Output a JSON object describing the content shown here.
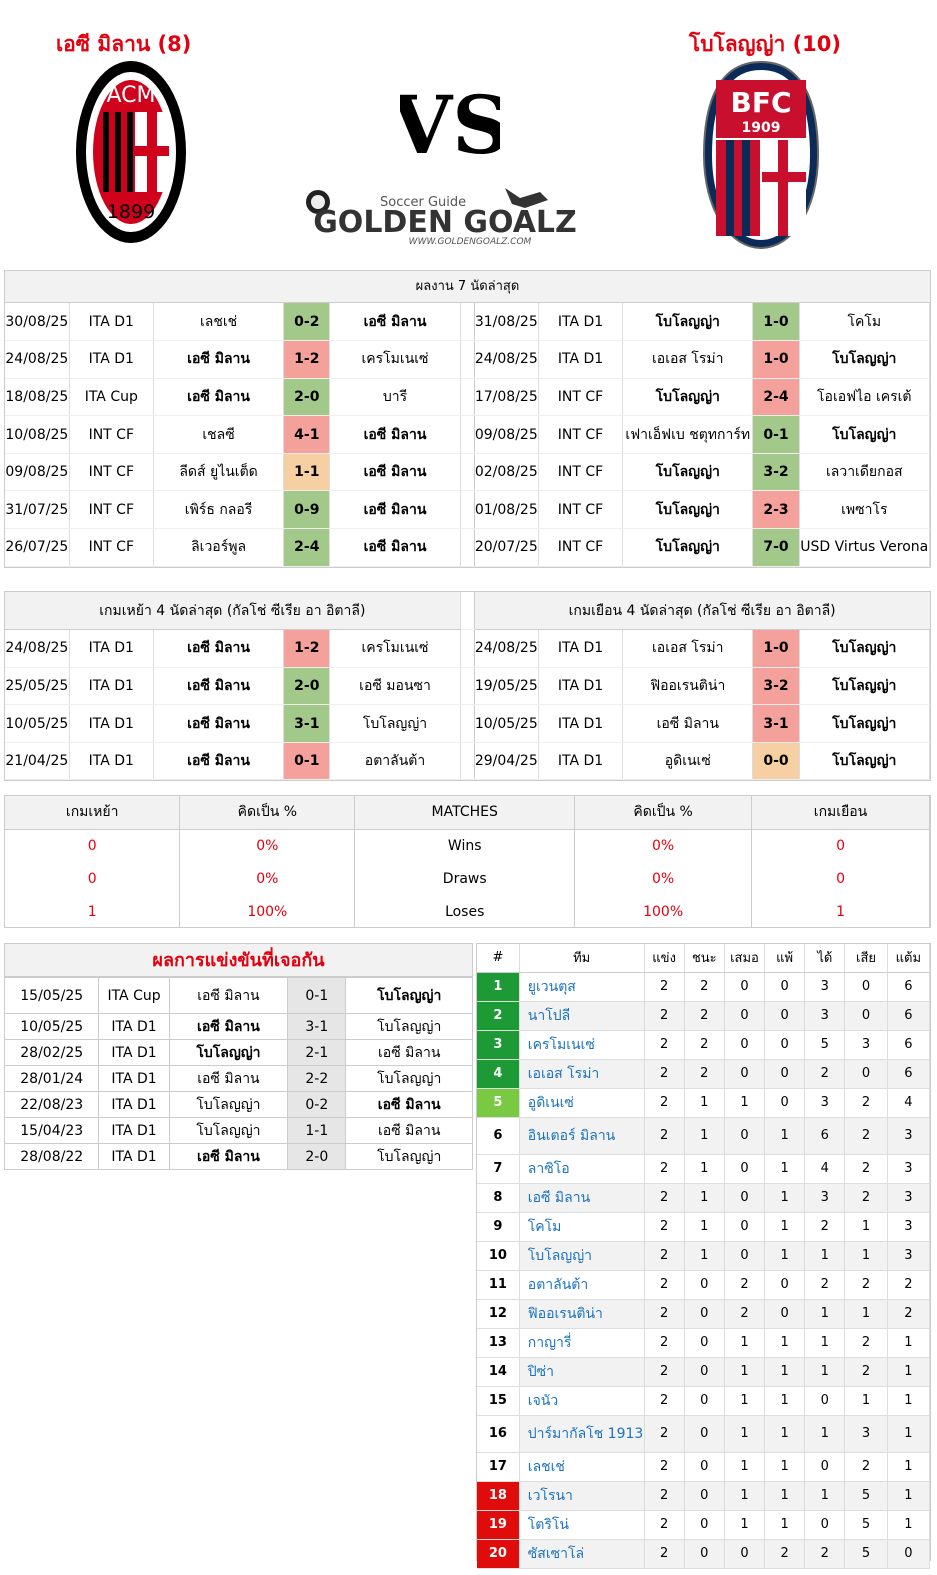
{
  "header": {
    "home_title": "เอซี มิลาน (8)",
    "away_title": "โบโลญญ่า (10)",
    "vs_label": "VS",
    "logo_small": "Soccer Guide",
    "logo_big": "GOLDEN GOALZ",
    "logo_url": "WWW.GOLDENGOALZ.COM",
    "home_crest_text": "ACM",
    "home_crest_year": "1899",
    "away_crest_text": "BFC",
    "away_crest_year": "1909"
  },
  "recent": {
    "title": "ผลงาน 7 นัดล่าสุด",
    "home": [
      {
        "date": "30/08/25",
        "comp": "ITA D1",
        "t1": "เลชเช่",
        "score": "0-2",
        "t2": "เอซี มิลาน",
        "res": "win",
        "b": 2
      },
      {
        "date": "24/08/25",
        "comp": "ITA D1",
        "t1": "เอซี มิลาน",
        "score": "1-2",
        "t2": "เครโมเนเซ่",
        "res": "loss",
        "b": 1
      },
      {
        "date": "18/08/25",
        "comp": "ITA Cup",
        "t1": "เอซี มิลาน",
        "score": "2-0",
        "t2": "บารี",
        "res": "win",
        "b": 1
      },
      {
        "date": "10/08/25",
        "comp": "INT CF",
        "t1": "เชลซี",
        "score": "4-1",
        "t2": "เอซี มิลาน",
        "res": "loss",
        "b": 2
      },
      {
        "date": "09/08/25",
        "comp": "INT CF",
        "t1": "ลีดส์ ยูไนเต็ด",
        "score": "1-1",
        "t2": "เอซี มิลาน",
        "res": "draw",
        "b": 2
      },
      {
        "date": "31/07/25",
        "comp": "INT CF",
        "t1": "เพิร์ธ กลอรี",
        "score": "0-9",
        "t2": "เอซี มิลาน",
        "res": "win",
        "b": 2
      },
      {
        "date": "26/07/25",
        "comp": "INT CF",
        "t1": "ลิเวอร์พูล",
        "score": "2-4",
        "t2": "เอซี มิลาน",
        "res": "win",
        "b": 2
      }
    ],
    "away": [
      {
        "date": "31/08/25",
        "comp": "ITA D1",
        "t1": "โบโลญญ่า",
        "score": "1-0",
        "t2": "โคโม",
        "res": "win",
        "b": 1
      },
      {
        "date": "24/08/25",
        "comp": "ITA D1",
        "t1": "เอเอส โรม่า",
        "score": "1-0",
        "t2": "โบโลญญ่า",
        "res": "loss",
        "b": 2
      },
      {
        "date": "17/08/25",
        "comp": "INT CF",
        "t1": "โบโลญญ่า",
        "score": "2-4",
        "t2": "โอเอฟไอ เครเต้",
        "res": "loss",
        "b": 1
      },
      {
        "date": "09/08/25",
        "comp": "INT CF",
        "t1": "เฟาเอ็ฟเบ ชตุทการ์ท",
        "score": "0-1",
        "t2": "โบโลญญ่า",
        "res": "win",
        "b": 2
      },
      {
        "date": "02/08/25",
        "comp": "INT CF",
        "t1": "โบโลญญ่า",
        "score": "3-2",
        "t2": "เลวาเดียกอส",
        "res": "win",
        "b": 1
      },
      {
        "date": "01/08/25",
        "comp": "INT CF",
        "t1": "โบโลญญ่า",
        "score": "2-3",
        "t2": "เพซาโร",
        "res": "loss",
        "b": 1
      },
      {
        "date": "20/07/25",
        "comp": "INT CF",
        "t1": "โบโลญญ่า",
        "score": "7-0",
        "t2": "USD Virtus Verona",
        "res": "win",
        "b": 1
      }
    ]
  },
  "venue": {
    "home_title": "เกมเหย้า 4 นัดล่าสุด (กัลโช่ ซีเรีย อา อิตาลี)",
    "away_title": "เกมเยือน 4 นัดล่าสุด (กัลโช่ ซีเรีย อา อิตาลี)",
    "home": [
      {
        "date": "24/08/25",
        "comp": "ITA D1",
        "t1": "เอซี มิลาน",
        "score": "1-2",
        "t2": "เครโมเนเซ่",
        "res": "loss",
        "b": 1
      },
      {
        "date": "25/05/25",
        "comp": "ITA D1",
        "t1": "เอซี มิลาน",
        "score": "2-0",
        "t2": "เอซี มอนซา",
        "res": "win",
        "b": 1
      },
      {
        "date": "10/05/25",
        "comp": "ITA D1",
        "t1": "เอซี มิลาน",
        "score": "3-1",
        "t2": "โบโลญญ่า",
        "res": "win",
        "b": 1
      },
      {
        "date": "21/04/25",
        "comp": "ITA D1",
        "t1": "เอซี มิลาน",
        "score": "0-1",
        "t2": "อตาลันต้า",
        "res": "loss",
        "b": 1
      }
    ],
    "away": [
      {
        "date": "24/08/25",
        "comp": "ITA D1",
        "t1": "เอเอส โรม่า",
        "score": "1-0",
        "t2": "โบโลญญ่า",
        "res": "loss",
        "b": 2
      },
      {
        "date": "19/05/25",
        "comp": "ITA D1",
        "t1": "ฟิออเรนติน่า",
        "score": "3-2",
        "t2": "โบโลญญ่า",
        "res": "loss",
        "b": 2
      },
      {
        "date": "10/05/25",
        "comp": "ITA D1",
        "t1": "เอซี มิลาน",
        "score": "3-1",
        "t2": "โบโลญญ่า",
        "res": "loss",
        "b": 2
      },
      {
        "date": "29/04/25",
        "comp": "ITA D1",
        "t1": "อูดิเนเซ่",
        "score": "0-0",
        "t2": "โบโลญญ่า",
        "res": "draw",
        "b": 2
      }
    ]
  },
  "stats": {
    "headers": [
      "เกมเหย้า",
      "คิดเป็น %",
      "MATCHES",
      "คิดเป็น %",
      "เกมเยือน"
    ],
    "rows": [
      {
        "h": "0",
        "hp": "0%",
        "label": "Wins",
        "ap": "0%",
        "a": "0"
      },
      {
        "h": "0",
        "hp": "0%",
        "label": "Draws",
        "ap": "0%",
        "a": "0"
      },
      {
        "h": "1",
        "hp": "100%",
        "label": "Loses",
        "ap": "100%",
        "a": "1"
      }
    ]
  },
  "h2h": {
    "title": "ผลการแข่งขันที่เจอกัน",
    "rows": [
      {
        "date": "15/05/25",
        "comp": "ITA Cup",
        "t1": "เอซี มิลาน",
        "score": "0-1",
        "t2": "โบโลญญ่า",
        "b": 2
      },
      {
        "date": "10/05/25",
        "comp": "ITA D1",
        "t1": "เอซี มิลาน",
        "score": "3-1",
        "t2": "โบโลญญ่า",
        "b": 1
      },
      {
        "date": "28/02/25",
        "comp": "ITA D1",
        "t1": "โบโลญญ่า",
        "score": "2-1",
        "t2": "เอซี มิลาน",
        "b": 1
      },
      {
        "date": "28/01/24",
        "comp": "ITA D1",
        "t1": "เอซี มิลาน",
        "score": "2-2",
        "t2": "โบโลญญ่า",
        "b": 0
      },
      {
        "date": "22/08/23",
        "comp": "ITA D1",
        "t1": "โบโลญญ่า",
        "score": "0-2",
        "t2": "เอซี มิลาน",
        "b": 2
      },
      {
        "date": "15/04/23",
        "comp": "ITA D1",
        "t1": "โบโลญญ่า",
        "score": "1-1",
        "t2": "เอซี มิลาน",
        "b": 0
      },
      {
        "date": "28/08/22",
        "comp": "ITA D1",
        "t1": "เอซี มิลาน",
        "score": "2-0",
        "t2": "โบโลญญ่า",
        "b": 1
      }
    ]
  },
  "league": {
    "headers": [
      "#",
      "ทีม",
      "แข่ง",
      "ชนะ",
      "เสมอ",
      "แพ้",
      "ได้",
      "เสีย",
      "แต้ม"
    ],
    "zone_colors": {
      "cl": "#1d9a36",
      "el": "#7ac943",
      "rel": "#e00b0b"
    },
    "rows": [
      {
        "pos": "1",
        "team": "ยูเวนตุส",
        "p": "2",
        "w": "2",
        "d": "0",
        "l": "0",
        "f": "3",
        "a": "0",
        "pts": "6",
        "zone": "cl"
      },
      {
        "pos": "2",
        "team": "นาโปลี",
        "p": "2",
        "w": "2",
        "d": "0",
        "l": "0",
        "f": "3",
        "a": "0",
        "pts": "6",
        "zone": "cl"
      },
      {
        "pos": "3",
        "team": "เครโมเนเซ่",
        "p": "2",
        "w": "2",
        "d": "0",
        "l": "0",
        "f": "5",
        "a": "3",
        "pts": "6",
        "zone": "cl"
      },
      {
        "pos": "4",
        "team": "เอเอส โรม่า",
        "p": "2",
        "w": "2",
        "d": "0",
        "l": "0",
        "f": "2",
        "a": "0",
        "pts": "6",
        "zone": "cl"
      },
      {
        "pos": "5",
        "team": "อูดิเนเซ่",
        "p": "2",
        "w": "1",
        "d": "1",
        "l": "0",
        "f": "3",
        "a": "2",
        "pts": "4",
        "zone": "el"
      },
      {
        "pos": "6",
        "team": "อินเตอร์ มิลาน",
        "p": "2",
        "w": "1",
        "d": "0",
        "l": "1",
        "f": "6",
        "a": "2",
        "pts": "3",
        "zone": ""
      },
      {
        "pos": "7",
        "team": "ลาซิโอ",
        "p": "2",
        "w": "1",
        "d": "0",
        "l": "1",
        "f": "4",
        "a": "2",
        "pts": "3",
        "zone": ""
      },
      {
        "pos": "8",
        "team": "เอซี มิลาน",
        "p": "2",
        "w": "1",
        "d": "0",
        "l": "1",
        "f": "3",
        "a": "2",
        "pts": "3",
        "zone": ""
      },
      {
        "pos": "9",
        "team": "โคโม",
        "p": "2",
        "w": "1",
        "d": "0",
        "l": "1",
        "f": "2",
        "a": "1",
        "pts": "3",
        "zone": ""
      },
      {
        "pos": "10",
        "team": "โบโลญญ่า",
        "p": "2",
        "w": "1",
        "d": "0",
        "l": "1",
        "f": "1",
        "a": "1",
        "pts": "3",
        "zone": ""
      },
      {
        "pos": "11",
        "team": "อตาลันต้า",
        "p": "2",
        "w": "0",
        "d": "2",
        "l": "0",
        "f": "2",
        "a": "2",
        "pts": "2",
        "zone": ""
      },
      {
        "pos": "12",
        "team": "ฟิออเรนติน่า",
        "p": "2",
        "w": "0",
        "d": "2",
        "l": "0",
        "f": "1",
        "a": "1",
        "pts": "2",
        "zone": ""
      },
      {
        "pos": "13",
        "team": "กาญารี่",
        "p": "2",
        "w": "0",
        "d": "1",
        "l": "1",
        "f": "1",
        "a": "2",
        "pts": "1",
        "zone": ""
      },
      {
        "pos": "14",
        "team": "ปิซ่า",
        "p": "2",
        "w": "0",
        "d": "1",
        "l": "1",
        "f": "1",
        "a": "2",
        "pts": "1",
        "zone": ""
      },
      {
        "pos": "15",
        "team": "เจนัว",
        "p": "2",
        "w": "0",
        "d": "1",
        "l": "1",
        "f": "0",
        "a": "1",
        "pts": "1",
        "zone": ""
      },
      {
        "pos": "16",
        "team": "ปาร์มากัลโช 1913",
        "p": "2",
        "w": "0",
        "d": "1",
        "l": "1",
        "f": "1",
        "a": "3",
        "pts": "1",
        "zone": ""
      },
      {
        "pos": "17",
        "team": "เลชเช่",
        "p": "2",
        "w": "0",
        "d": "1",
        "l": "1",
        "f": "0",
        "a": "2",
        "pts": "1",
        "zone": ""
      },
      {
        "pos": "18",
        "team": "เวโรนา",
        "p": "2",
        "w": "0",
        "d": "1",
        "l": "1",
        "f": "1",
        "a": "5",
        "pts": "1",
        "zone": "rel"
      },
      {
        "pos": "19",
        "team": "โตริโน่",
        "p": "2",
        "w": "0",
        "d": "1",
        "l": "1",
        "f": "0",
        "a": "5",
        "pts": "1",
        "zone": "rel"
      },
      {
        "pos": "20",
        "team": "ซัสเซาโล่",
        "p": "2",
        "w": "0",
        "d": "0",
        "l": "2",
        "f": "2",
        "a": "5",
        "pts": "0",
        "zone": "rel"
      }
    ]
  }
}
